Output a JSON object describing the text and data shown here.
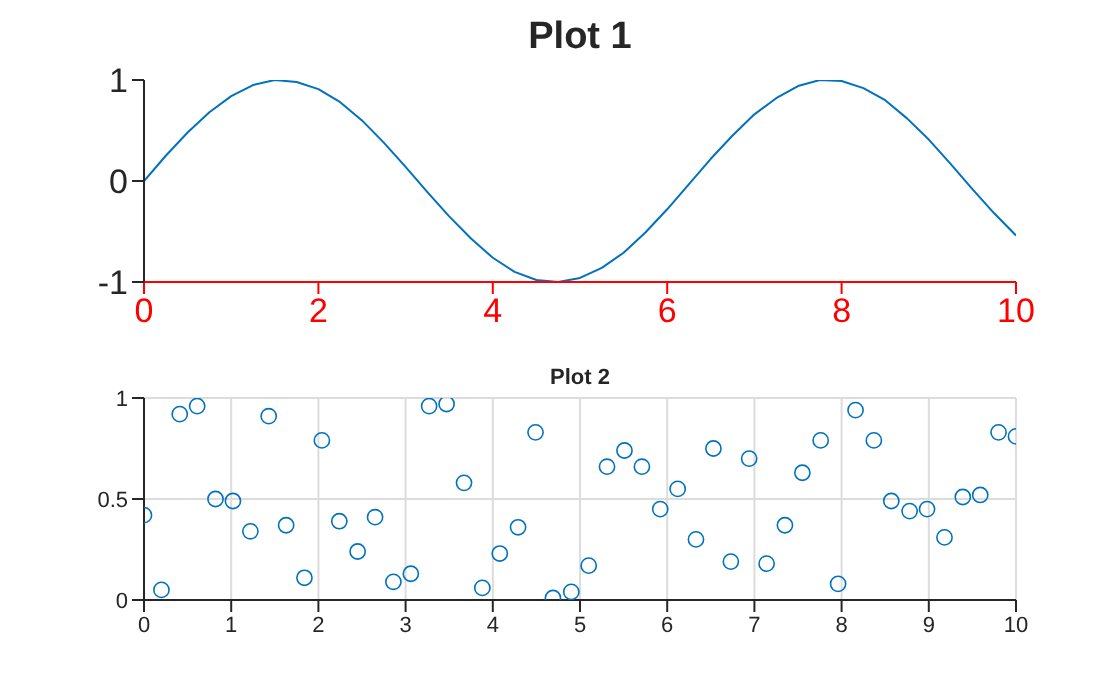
{
  "chart_data": [
    {
      "type": "line",
      "title": "Plot 1",
      "x": [
        0,
        0.25,
        0.5,
        0.75,
        1,
        1.25,
        1.5,
        1.75,
        2,
        2.25,
        2.5,
        2.75,
        3,
        3.25,
        3.5,
        3.75,
        4,
        4.25,
        4.5,
        4.75,
        5,
        5.25,
        5.5,
        5.75,
        6,
        6.25,
        6.5,
        6.75,
        7,
        7.25,
        7.5,
        7.75,
        8,
        8.25,
        8.5,
        8.75,
        9,
        9.25,
        9.5,
        9.75,
        10
      ],
      "series": [
        {
          "color": "#0072bd",
          "values": [
            0,
            0.25,
            0.48,
            0.68,
            0.84,
            0.95,
            1,
            0.98,
            0.91,
            0.78,
            0.6,
            0.38,
            0.14,
            -0.11,
            -0.35,
            -0.57,
            -0.76,
            -0.9,
            -0.98,
            -1,
            -0.96,
            -0.86,
            -0.71,
            -0.51,
            -0.28,
            -0.03,
            0.22,
            0.45,
            0.66,
            0.82,
            0.94,
            1,
            0.99,
            0.92,
            0.8,
            0.62,
            0.41,
            0.17,
            -0.08,
            -0.32,
            -0.54
          ]
        }
      ],
      "xlim": [
        0,
        10
      ],
      "xticks": [
        0,
        2,
        4,
        6,
        8,
        10
      ],
      "ylim": [
        -1,
        1
      ],
      "yticks": [
        -1,
        0,
        1
      ],
      "grid": false,
      "marker": "none",
      "line_style": "solid"
    },
    {
      "type": "scatter",
      "title": "Plot 2",
      "x": [
        0,
        0.2,
        0.41,
        0.61,
        0.82,
        1.02,
        1.22,
        1.43,
        1.63,
        1.84,
        2.04,
        2.24,
        2.45,
        2.65,
        2.86,
        3.06,
        3.27,
        3.47,
        3.67,
        3.88,
        4.08,
        4.29,
        4.49,
        4.69,
        4.9,
        5.1,
        5.31,
        5.51,
        5.71,
        5.92,
        6.12,
        6.33,
        6.53,
        6.73,
        6.94,
        7.14,
        7.35,
        7.55,
        7.76,
        7.96,
        8.16,
        8.37,
        8.57,
        8.78,
        8.98,
        9.18,
        9.39,
        9.59,
        9.8,
        10
      ],
      "series": [
        {
          "color": "#0072bd",
          "values": [
            0.42,
            0.05,
            0.92,
            0.96,
            0.5,
            0.49,
            0.34,
            0.91,
            0.37,
            0.11,
            0.79,
            0.39,
            0.24,
            0.41,
            0.09,
            0.13,
            0.96,
            0.97,
            0.58,
            0.06,
            0.23,
            0.36,
            0.83,
            0.01,
            0.04,
            0.17,
            0.66,
            0.74,
            0.66,
            0.45,
            0.55,
            0.3,
            0.75,
            0.19,
            0.7,
            0.18,
            0.37,
            0.63,
            0.79,
            0.08,
            0.94,
            0.79,
            0.49,
            0.44,
            0.45,
            0.31,
            0.51,
            0.52,
            0.83,
            0.81
          ]
        }
      ],
      "xlim": [
        0,
        10
      ],
      "xticks": [
        0,
        1,
        2,
        3,
        4,
        5,
        6,
        7,
        8,
        9,
        10
      ],
      "ylim": [
        0,
        1
      ],
      "yticks": [
        0,
        0.5,
        1
      ],
      "grid": true,
      "marker": "circle"
    }
  ]
}
